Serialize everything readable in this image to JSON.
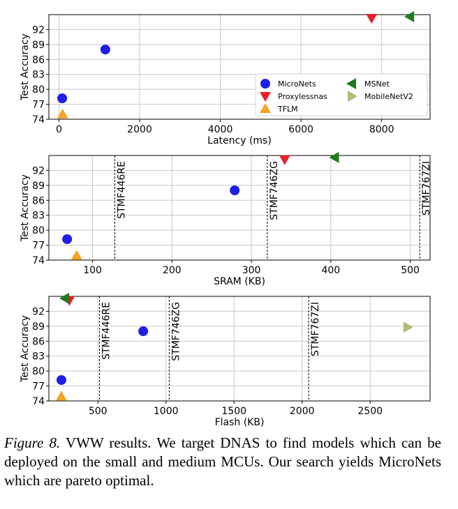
{
  "chart_data": [
    {
      "type": "scatter",
      "xlabel": "Latency (ms)",
      "ylabel": "Test Accuracy",
      "xlim": [
        -250,
        9200
      ],
      "ylim": [
        74,
        95
      ],
      "xticks": [
        0,
        2000,
        4000,
        6000,
        8000
      ],
      "yticks": [
        74,
        77,
        80,
        83,
        86,
        89,
        92
      ],
      "grid": true,
      "legend": {
        "placement": "bottom-right",
        "columns": 2,
        "entries": [
          {
            "name": "MicroNets",
            "marker": "circle",
            "color": "#1f1fe6"
          },
          {
            "name": "MSNet",
            "marker": "tri-left",
            "color": "#1e7b1e"
          },
          {
            "name": "Proxylessnas",
            "marker": "tri-down",
            "color": "#e8202a"
          },
          {
            "name": "MobileNetV2",
            "marker": "tri-right",
            "color": "#b8b878"
          },
          {
            "name": "TFLM",
            "marker": "tri-up",
            "color": "#f7a326"
          }
        ]
      },
      "series": [
        {
          "name": "MicroNets",
          "marker": "circle",
          "color": "#1f1fe6",
          "points": [
            [
              80,
              78.2
            ],
            [
              1150,
              88.0
            ]
          ]
        },
        {
          "name": "Proxylessnas",
          "marker": "tri-down",
          "color": "#e8202a",
          "points": [
            [
              7750,
              94.3
            ]
          ]
        },
        {
          "name": "TFLM",
          "marker": "tri-up",
          "color": "#f7a326",
          "points": [
            [
              90,
              75.0
            ]
          ]
        },
        {
          "name": "MSNet",
          "marker": "tri-left",
          "color": "#1e7b1e",
          "points": [
            [
              8700,
              94.6
            ]
          ]
        }
      ],
      "vlines": []
    },
    {
      "type": "scatter",
      "xlabel": "SRAM (KB)",
      "ylabel": "Test Accuracy",
      "xlim": [
        45,
        525
      ],
      "ylim": [
        74,
        95
      ],
      "xticks": [
        100,
        200,
        300,
        400,
        500
      ],
      "yticks": [
        74,
        77,
        80,
        83,
        86,
        89,
        92
      ],
      "grid": true,
      "series": [
        {
          "name": "MicroNets",
          "marker": "circle",
          "color": "#1f1fe6",
          "points": [
            [
              68,
              78.2
            ],
            [
              279,
              88.0
            ]
          ]
        },
        {
          "name": "Proxylessnas",
          "marker": "tri-down",
          "color": "#e8202a",
          "points": [
            [
              342,
              94.2
            ]
          ]
        },
        {
          "name": "TFLM",
          "marker": "tri-up",
          "color": "#f7a326",
          "points": [
            [
              80,
              74.9
            ]
          ]
        },
        {
          "name": "MSNet",
          "marker": "tri-left",
          "color": "#1e7b1e",
          "points": [
            [
              405,
              94.6
            ]
          ]
        }
      ],
      "vlines": [
        {
          "x": 128,
          "label": "STMF446RE"
        },
        {
          "x": 320,
          "label": "STMF746ZG"
        },
        {
          "x": 512,
          "label": "STMF767ZI"
        }
      ]
    },
    {
      "type": "scatter",
      "xlabel": "Flash (KB)",
      "ylabel": "Test Accuracy",
      "xlim": [
        140,
        2940
      ],
      "ylim": [
        74,
        95
      ],
      "xticks": [
        500,
        1000,
        1500,
        2000,
        2500
      ],
      "yticks": [
        74,
        77,
        80,
        83,
        86,
        89,
        92
      ],
      "grid": true,
      "series": [
        {
          "name": "MicroNets",
          "marker": "circle",
          "color": "#1f1fe6",
          "points": [
            [
              232,
              78.2
            ],
            [
              833,
              88.0
            ]
          ]
        },
        {
          "name": "Proxylessnas",
          "marker": "tri-down",
          "color": "#e8202a",
          "points": [
            [
              290,
              94.2
            ]
          ]
        },
        {
          "name": "TFLM",
          "marker": "tri-up",
          "color": "#f7a326",
          "points": [
            [
              232,
              74.9
            ]
          ]
        },
        {
          "name": "MSNet",
          "marker": "tri-left",
          "color": "#1e7b1e",
          "points": [
            [
              258,
              94.6
            ]
          ]
        },
        {
          "name": "MobileNetV2",
          "marker": "tri-right",
          "color": "#b8b878",
          "points": [
            [
              2775,
              88.8
            ]
          ]
        }
      ],
      "vlines": [
        {
          "x": 512,
          "label": "STMF446RE"
        },
        {
          "x": 1024,
          "label": "STMF746ZG"
        },
        {
          "x": 2048,
          "label": "STMF767ZI"
        }
      ]
    }
  ],
  "caption": {
    "label": "Figure 8.",
    "text": "VWW results. We target DNAS to find models which can be deployed on the small and medium MCUs. Our search yields MicroNets which are pareto optimal."
  }
}
